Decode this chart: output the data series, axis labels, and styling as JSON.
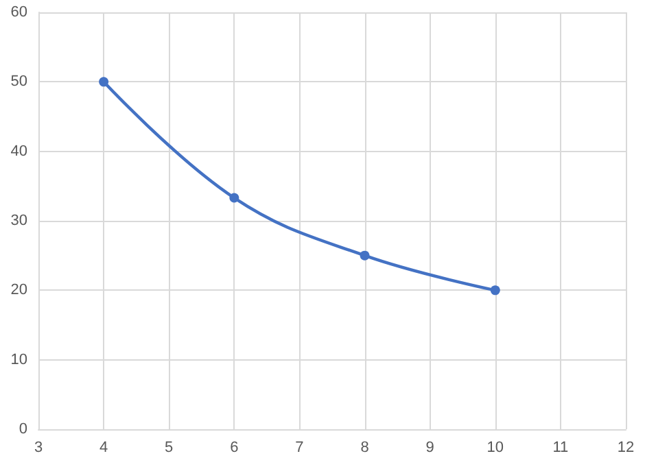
{
  "chart_data": {
    "type": "line",
    "x": [
      4,
      6,
      8,
      10
    ],
    "series": [
      {
        "color": "#4472c4",
        "values": [
          50,
          33.3,
          25,
          20
        ]
      }
    ],
    "xlim": [
      3,
      12
    ],
    "xticks": [
      3,
      4,
      5,
      6,
      7,
      8,
      9,
      10,
      11,
      12
    ],
    "ylim": [
      0,
      60
    ],
    "yticks": [
      0,
      10,
      20,
      30,
      40,
      50,
      60
    ],
    "grid": true,
    "marker": "circle",
    "line_style": "solid"
  }
}
